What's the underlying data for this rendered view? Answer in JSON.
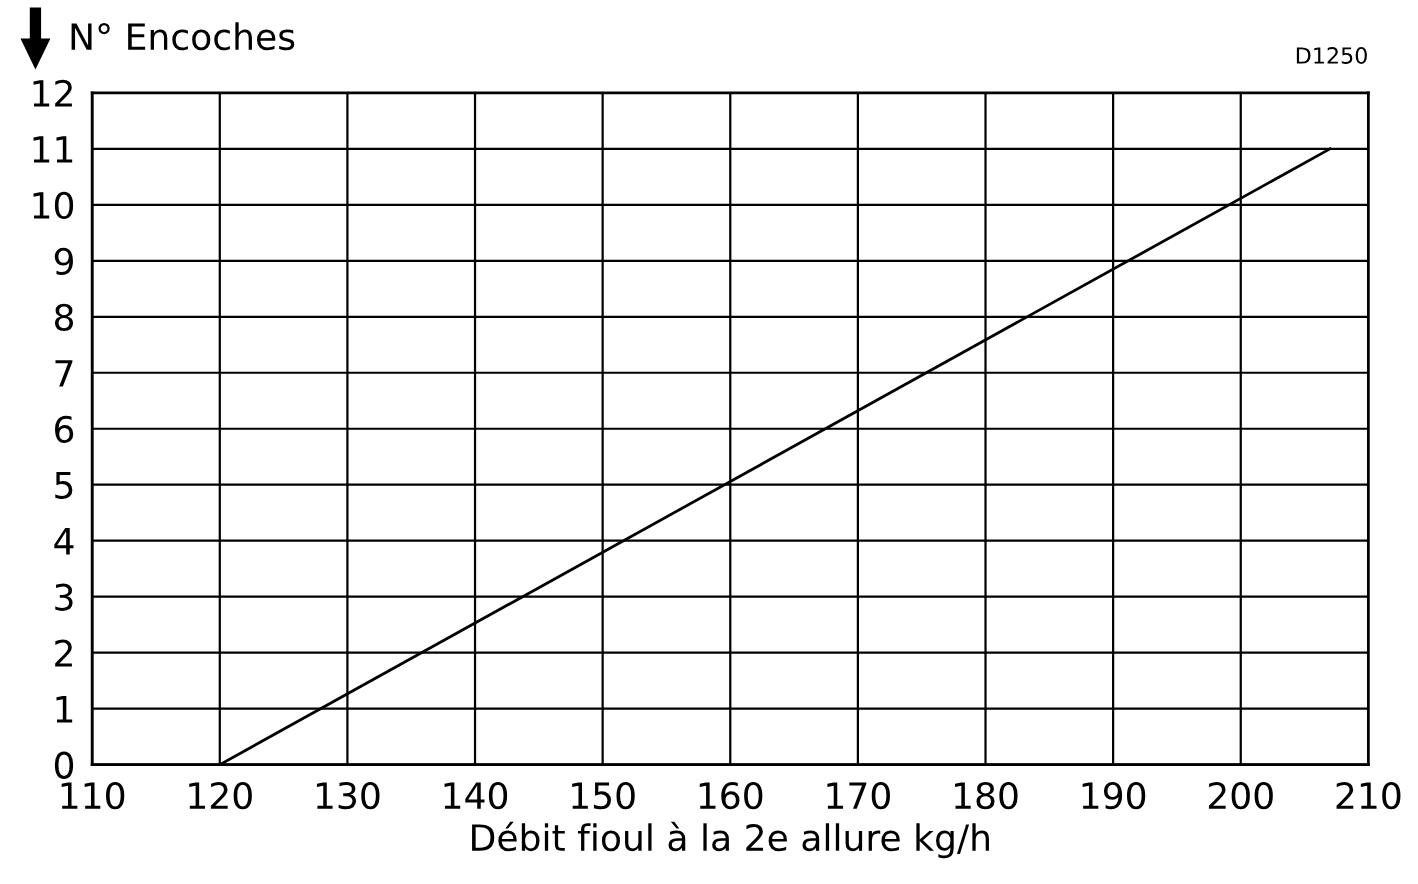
{
  "chart_data": {
    "type": "line",
    "xlabel": "Débit fioul à la 2e allure kg/h",
    "ylabel": "N° Encoches",
    "annotations": [
      "D1250"
    ],
    "series": [
      {
        "color": "#000000",
        "x": [
          120,
          207
        ],
        "values": [
          0,
          11
        ]
      }
    ],
    "xlim": [
      110,
      210
    ],
    "xticks": [
      110,
      120,
      130,
      140,
      150,
      160,
      170,
      180,
      190,
      200,
      210
    ],
    "ylim": [
      0,
      12
    ],
    "yticks": [
      0,
      1,
      2,
      3,
      4,
      5,
      6,
      7,
      8,
      9,
      10,
      11,
      12
    ],
    "grid": true,
    "marker": "none",
    "line_style": "solid",
    "legend": false
  }
}
